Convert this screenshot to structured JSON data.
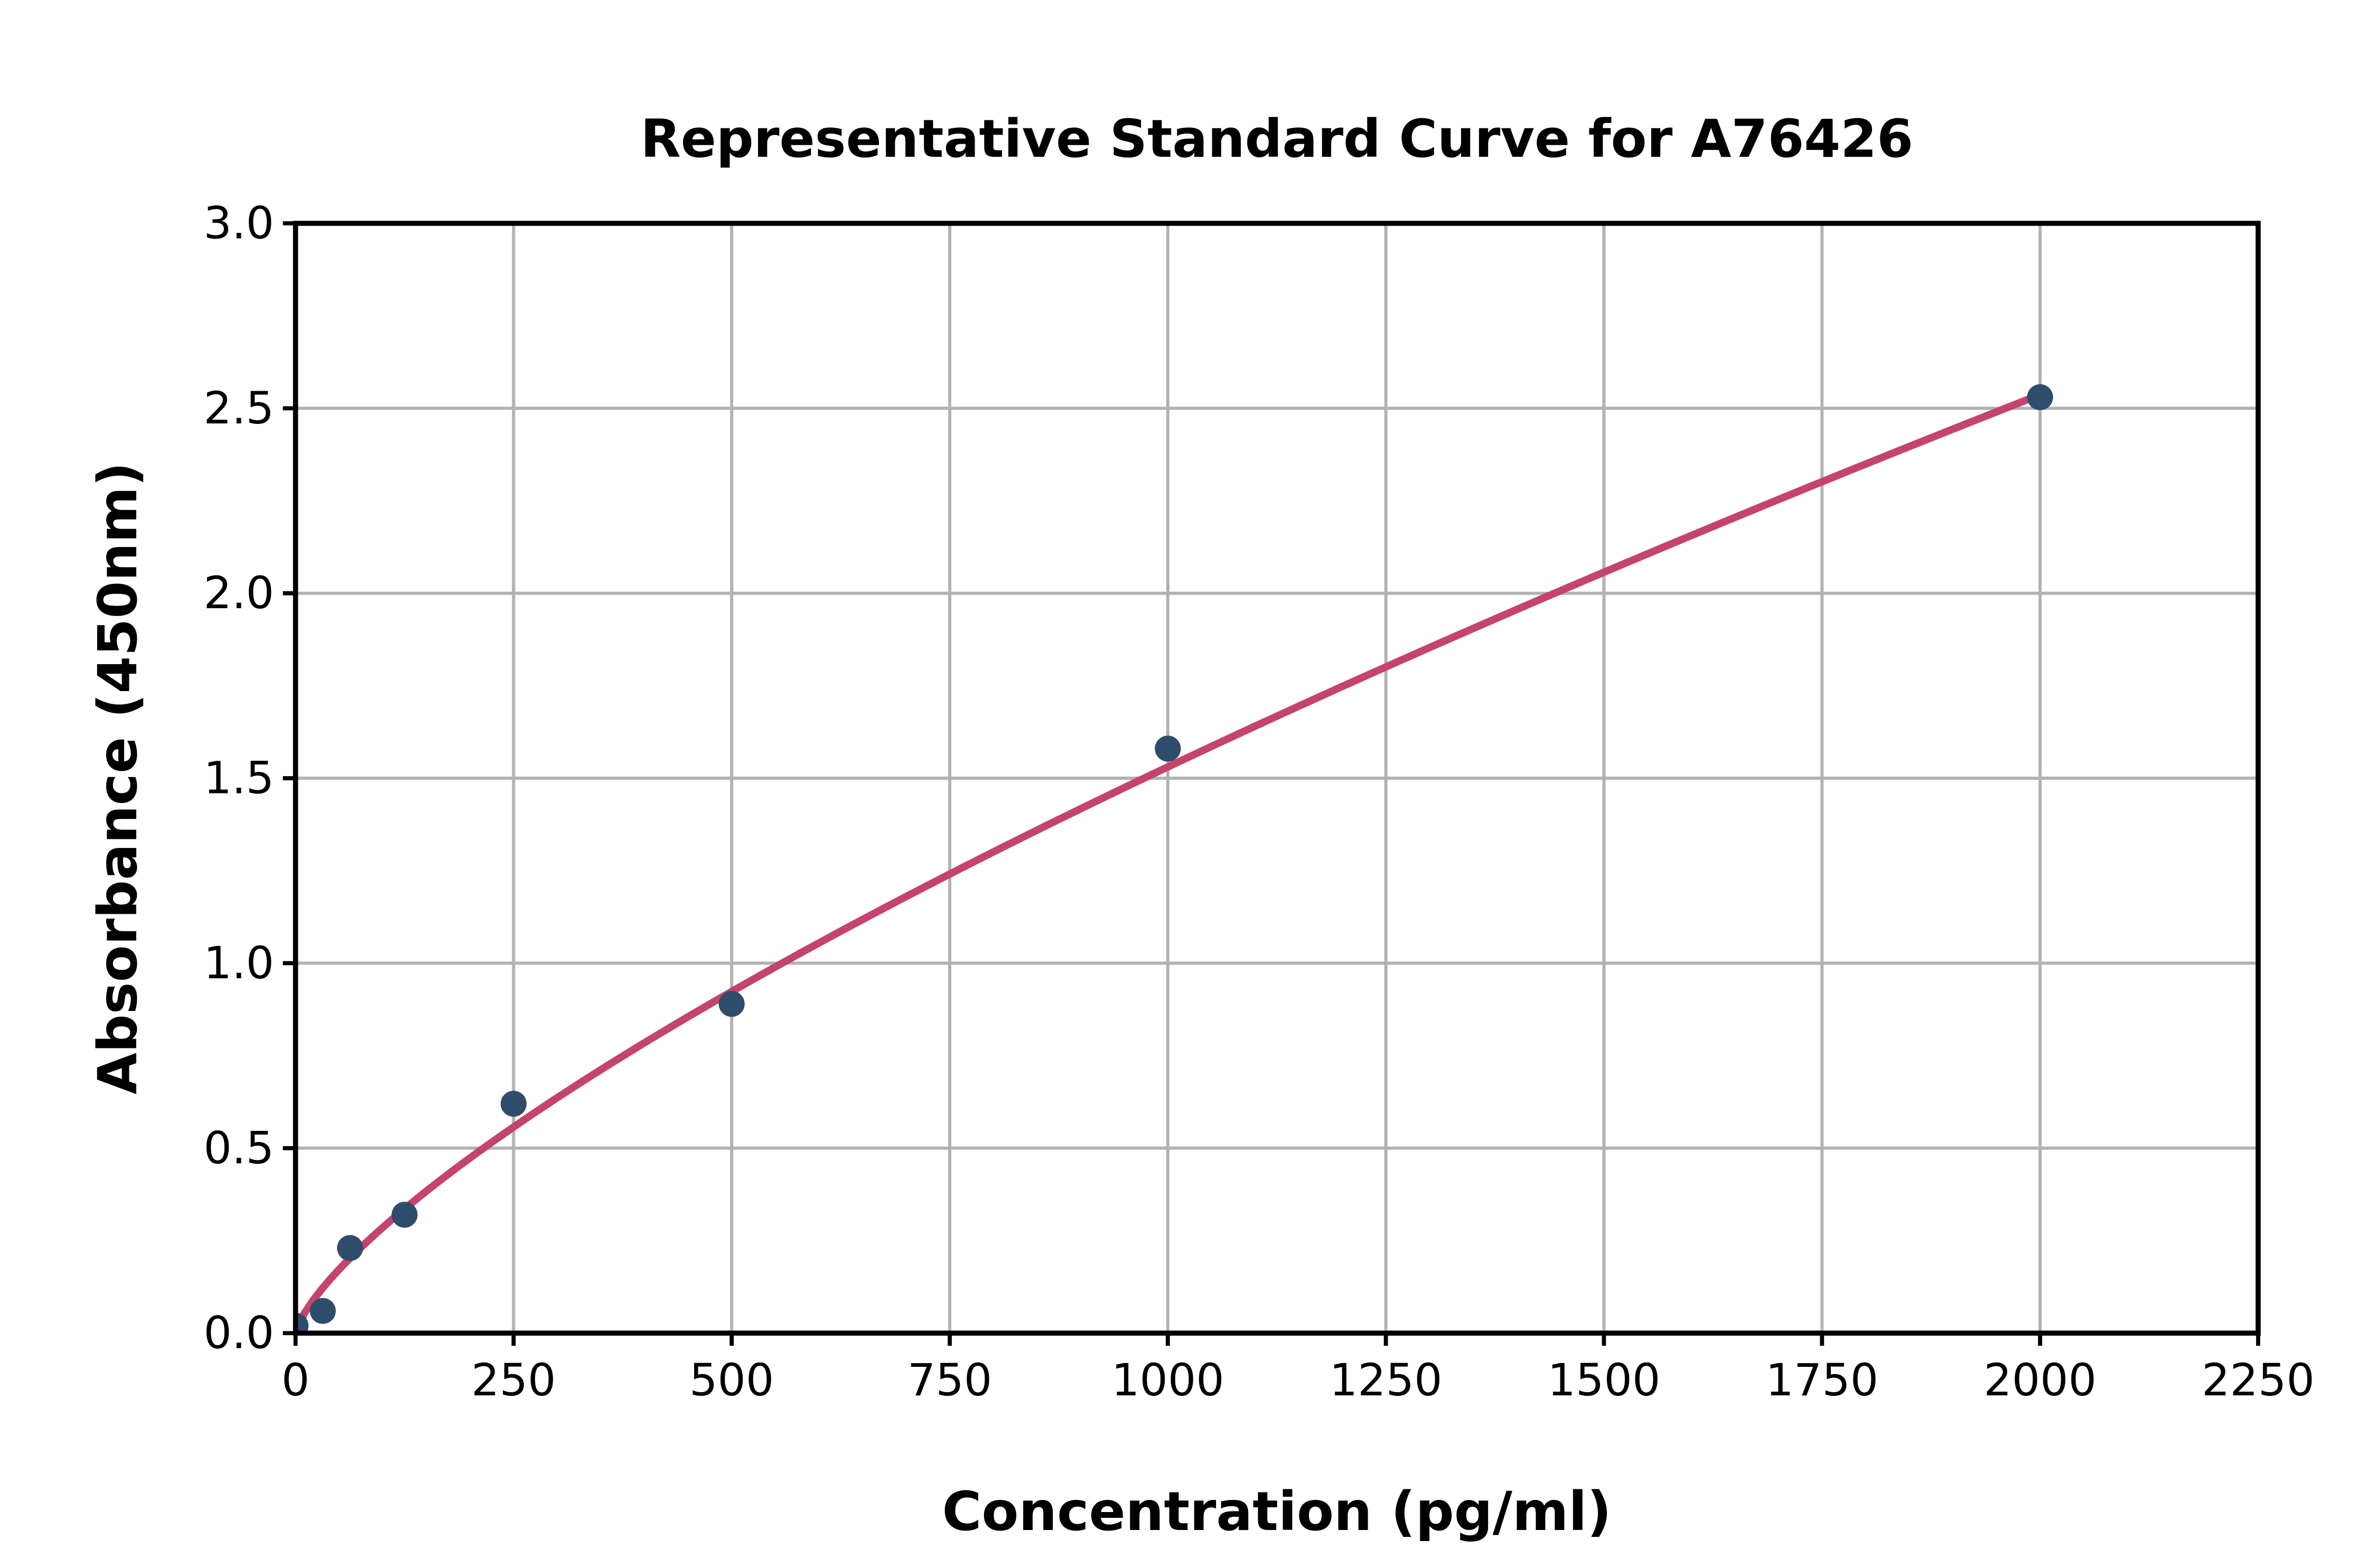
{
  "figure": {
    "title": "Representative Standard Curve for A76426",
    "background_color": "#ffffff"
  },
  "chart_data": {
    "type": "scatter",
    "title": "Representative Standard Curve for A76426",
    "xlabel": "Concentration (pg/ml)",
    "ylabel": "Absorbance (450nm)",
    "xlim": [
      0,
      2250
    ],
    "ylim": [
      0,
      3.0
    ],
    "grid": true,
    "legend": false,
    "x_tick_values": [
      0,
      250,
      500,
      750,
      1000,
      1250,
      1500,
      1750,
      2000,
      2250
    ],
    "x_tick_labels": [
      "0",
      "250",
      "500",
      "750",
      "1000",
      "1250",
      "1500",
      "1750",
      "2000",
      "2250"
    ],
    "y_tick_values": [
      0.0,
      0.5,
      1.0,
      1.5,
      2.0,
      2.5,
      3.0
    ],
    "y_tick_labels": [
      "0.0",
      "0.5",
      "1.0",
      "1.5",
      "2.0",
      "2.5",
      "3.0"
    ],
    "series": [
      {
        "name": "standard-points",
        "type": "scatter",
        "color": "#2E4D6B",
        "x": [
          0,
          31.25,
          62.5,
          125,
          250,
          500,
          1000,
          2000
        ],
        "y": [
          0.02,
          0.06,
          0.23,
          0.32,
          0.62,
          0.89,
          1.58,
          2.53
        ]
      },
      {
        "name": "fit-curve",
        "type": "line",
        "color": "#C4446E",
        "fit": {
          "kind": "power",
          "a": 0.00995,
          "b": 0.729
        },
        "x_start": 0,
        "x_end": 2000
      }
    ],
    "colors": {
      "marker": "#2E4D6B",
      "curve": "#C4446E",
      "gridline": "#B2B2B2",
      "spine": "#000000"
    }
  }
}
